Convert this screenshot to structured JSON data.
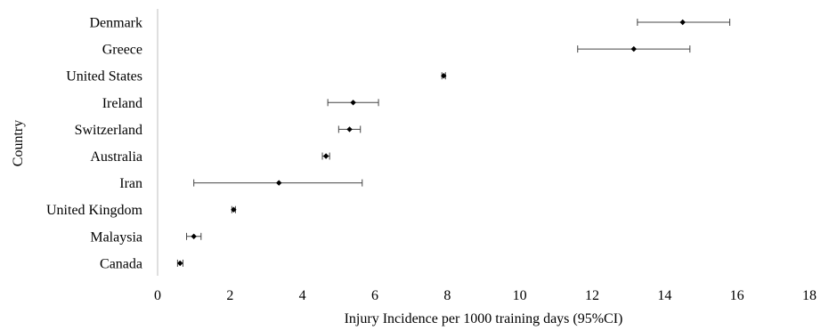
{
  "chart_data": {
    "type": "scatter",
    "orientation": "horizontal",
    "title": "",
    "xlabel": "Injury Incidence per 1000 training days (95%CI)",
    "ylabel": "Country",
    "xlim": [
      0,
      18
    ],
    "xticks": [
      0,
      2,
      4,
      6,
      8,
      10,
      12,
      14,
      16,
      18
    ],
    "grid": false,
    "legend": "none",
    "colors": {
      "point": "#000000",
      "errorbar": "#444444",
      "axis": "#bfbfbf"
    },
    "categories": [
      "Denmark",
      "Greece",
      "United States",
      "Ireland",
      "Switzerland",
      "Australia",
      "Iran",
      "United Kingdom",
      "Malaysia",
      "Canada"
    ],
    "points": [
      {
        "country": "Denmark",
        "value": 14.5,
        "ci_low": 13.25,
        "ci_high": 15.8
      },
      {
        "country": "Greece",
        "value": 13.15,
        "ci_low": 11.6,
        "ci_high": 14.7
      },
      {
        "country": "United States",
        "value": 7.9,
        "ci_low": 7.85,
        "ci_high": 7.95
      },
      {
        "country": "Ireland",
        "value": 5.4,
        "ci_low": 4.7,
        "ci_high": 6.1
      },
      {
        "country": "Switzerland",
        "value": 5.3,
        "ci_low": 5.0,
        "ci_high": 5.6
      },
      {
        "country": "Australia",
        "value": 4.65,
        "ci_low": 4.55,
        "ci_high": 4.75
      },
      {
        "country": "Iran",
        "value": 3.35,
        "ci_low": 1.0,
        "ci_high": 5.65
      },
      {
        "country": "United Kingdom",
        "value": 2.1,
        "ci_low": 2.05,
        "ci_high": 2.15
      },
      {
        "country": "Malaysia",
        "value": 1.0,
        "ci_low": 0.8,
        "ci_high": 1.2
      },
      {
        "country": "Canada",
        "value": 0.62,
        "ci_low": 0.55,
        "ci_high": 0.7
      }
    ]
  }
}
